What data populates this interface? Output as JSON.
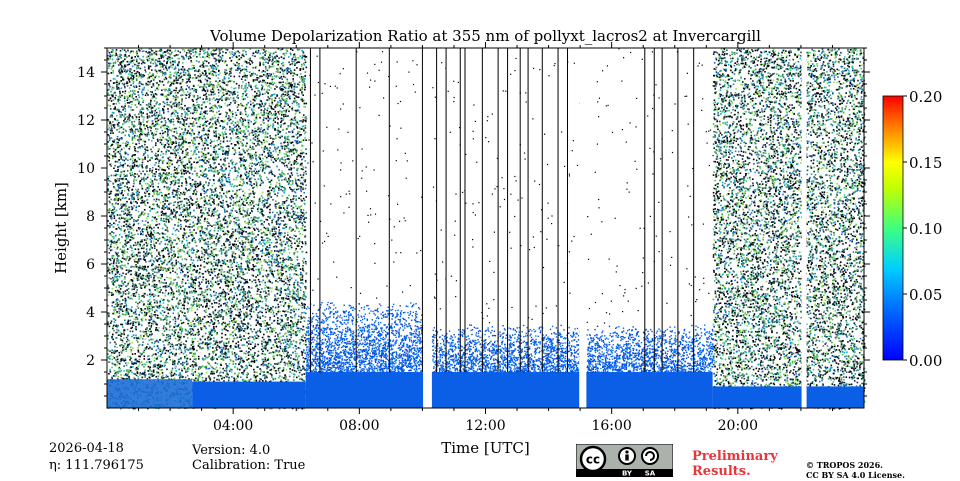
{
  "chart_data": {
    "type": "heatmap",
    "title": "Volume Depolarization Ratio at 355 nm of pollyxt_lacros2 at Invercargill",
    "xlabel": "Time [UTC]",
    "ylabel": "Height [km]",
    "xlim": [
      0,
      24
    ],
    "ylim": [
      0,
      15
    ],
    "x_ticks": [
      4,
      8,
      12,
      16,
      20
    ],
    "x_tick_labels": [
      "04:00",
      "08:00",
      "12:00",
      "16:00",
      "20:00"
    ],
    "y_ticks": [
      2,
      4,
      6,
      8,
      10,
      12,
      14
    ],
    "y_tick_labels": [
      "2",
      "4",
      "6",
      "8",
      "10",
      "12",
      "14"
    ],
    "colorbar": {
      "range": [
        0.0,
        0.2
      ],
      "ticks": [
        0.0,
        0.05,
        0.1,
        0.15,
        0.2
      ],
      "tick_labels": [
        "0.00",
        "0.05",
        "0.10",
        "0.15",
        "0.20"
      ],
      "colormap": "jet"
    },
    "data_gaps_hours": [
      10.1,
      15.05,
      22.1
    ],
    "profile_marker_hours": [
      6.45,
      6.75,
      7.9,
      8.95,
      10.0,
      10.45,
      10.75,
      11.2,
      11.35,
      11.9,
      12.4,
      12.7,
      13.1,
      13.35,
      13.8,
      14.3,
      14.6,
      17.05,
      17.35,
      17.6,
      18.1,
      18.6
    ],
    "regions": [
      {
        "from_hour": 0.0,
        "to_hour": 6.3,
        "character": "noisy",
        "cloud_top_km": 15
      },
      {
        "from_hour": 6.3,
        "to_hour": 10.1,
        "character": "low depolarization boundary layer",
        "cloud_top_km": 4.5
      },
      {
        "from_hour": 10.3,
        "to_hour": 15.0,
        "character": "low depolarization boundary layer",
        "cloud_top_km": 3.5
      },
      {
        "from_hour": 15.2,
        "to_hour": 19.2,
        "character": "low depolarization boundary layer",
        "cloud_top_km": 3.5
      },
      {
        "from_hour": 19.2,
        "to_hour": 24.0,
        "character": "noisy",
        "cloud_top_km": 15
      }
    ]
  },
  "info": {
    "date": "2026-04-18",
    "eta": "η: 111.796175",
    "version": "Version: 4.0",
    "calibration": "Calibration: True",
    "preliminary": "Preliminary",
    "results": "Results.",
    "copyright": "© TROPOS 2026.",
    "license": "CC BY SA 4.0 License.",
    "badge_cc": "cc",
    "badge_by": "BY",
    "badge_sa": "SA"
  }
}
